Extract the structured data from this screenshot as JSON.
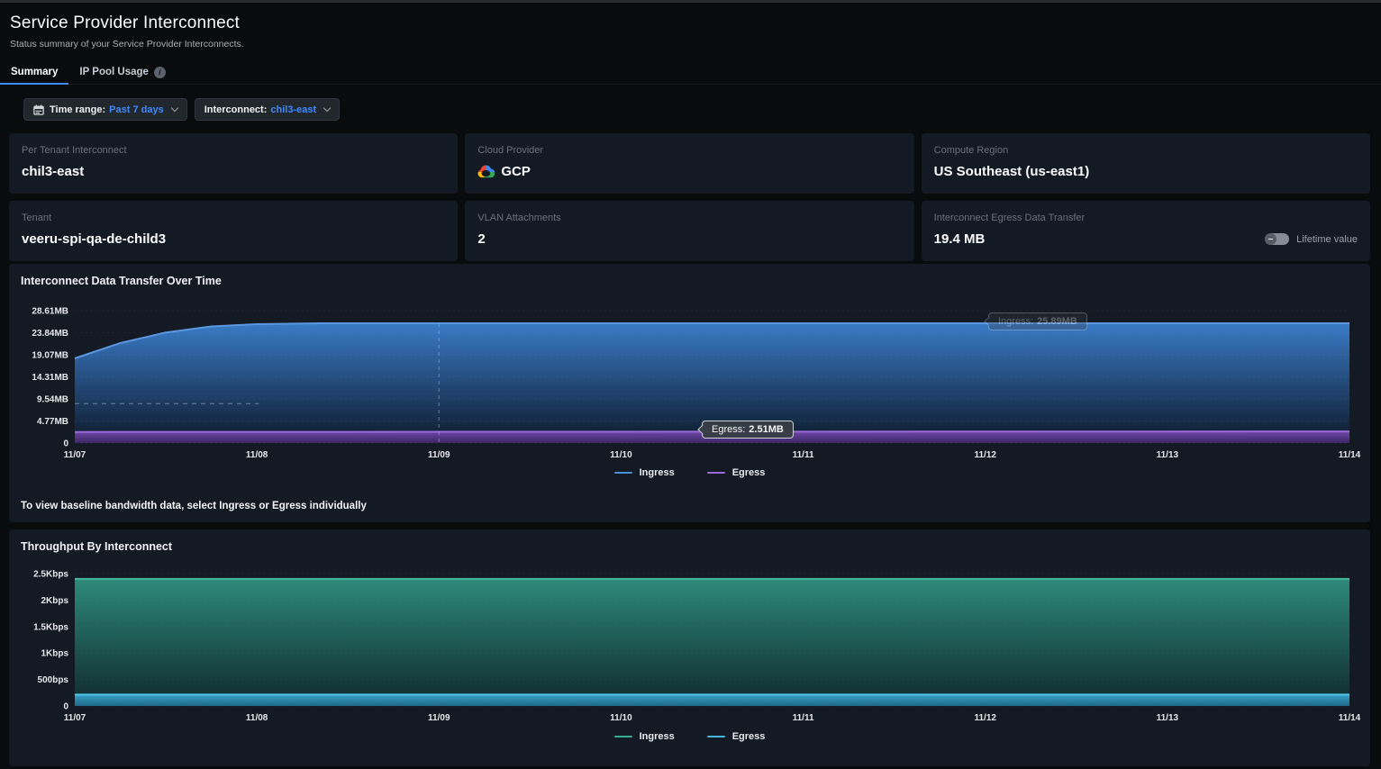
{
  "header": {
    "title": "Service Provider Interconnect",
    "subtitle": "Status summary of your Service Provider Interconnects."
  },
  "tabs": [
    {
      "label": "Summary",
      "active": true
    },
    {
      "label": "IP Pool Usage",
      "active": false
    }
  ],
  "filters": {
    "time_range_label": "Time range:",
    "time_range_value": "Past 7 days",
    "interconnect_label": "Interconnect:",
    "interconnect_value": "chil3-east"
  },
  "cards": [
    {
      "label": "Per Tenant Interconnect",
      "value": "chil3-east"
    },
    {
      "label": "Cloud Provider",
      "value": "GCP",
      "icon": "gcp-logo"
    },
    {
      "label": "Compute Region",
      "value": "US Southeast (us-east1)"
    },
    {
      "label": "Tenant",
      "value": "veeru-spi-qa-de-child3"
    },
    {
      "label": "VLAN Attachments",
      "value": "2"
    },
    {
      "label": "Interconnect Egress Data Transfer",
      "value": "19.4 MB",
      "toggle_label": "Lifetime value",
      "toggle_state": "off"
    }
  ],
  "note": "To view baseline bandwidth data, select Ingress or Egress individually",
  "chart_data": [
    {
      "type": "area",
      "title": "Interconnect Data Transfer Over Time",
      "categories": [
        "11/07",
        "11/08",
        "11/09",
        "11/10",
        "11/11",
        "11/12",
        "11/13",
        "11/14"
      ],
      "ylim": [
        0,
        28.61
      ],
      "y_ticks": [
        {
          "label": "28.61MB",
          "v": 28.61
        },
        {
          "label": "23.84MB",
          "v": 23.84
        },
        {
          "label": "19.07MB",
          "v": 19.07
        },
        {
          "label": "14.31MB",
          "v": 14.31
        },
        {
          "label": "9.54MB",
          "v": 9.54
        },
        {
          "label": "4.77MB",
          "v": 4.77
        },
        {
          "label": "0",
          "v": 0
        }
      ],
      "series": [
        {
          "name": "Ingress",
          "points": [
            [
              0,
              18.3
            ],
            [
              0.25,
              21.6
            ],
            [
              0.5,
              23.9
            ],
            [
              0.75,
              25.2
            ],
            [
              1,
              25.7
            ],
            [
              1.35,
              25.89
            ],
            [
              7,
              25.89
            ]
          ],
          "line": "#5b97de",
          "fill_top": "#3b7ecc",
          "fill_bottom": "#0d1a2c"
        },
        {
          "name": "Egress",
          "points": [
            [
              0,
              2.4
            ],
            [
              7,
              2.51
            ]
          ],
          "line": "#9a68d8",
          "fill_top": "#7449ad",
          "fill_bottom": "#3c2766"
        }
      ],
      "baseline": {
        "v": 8.5,
        "from_idx": 0,
        "to_idx": 1.01
      },
      "crosshair": {
        "idx": 2,
        "top_v": 25.89
      },
      "tooltips": [
        {
          "label": "Ingress:",
          "value": "25.89MB",
          "faded": true
        },
        {
          "label": "Egress:",
          "value": "2.51MB",
          "faded": false
        }
      ],
      "legend": [
        {
          "label": "Ingress",
          "color": "#4a8fd9"
        },
        {
          "label": "Egress",
          "color": "#9a68d8"
        }
      ]
    },
    {
      "type": "area",
      "title": "Throughput By Interconnect",
      "categories": [
        "11/07",
        "11/08",
        "11/09",
        "11/10",
        "11/11",
        "11/12",
        "11/13",
        "11/14"
      ],
      "ylim": [
        0,
        2500
      ],
      "y_ticks": [
        {
          "label": "2.5Kbps",
          "v": 2500
        },
        {
          "label": "2Kbps",
          "v": 2000
        },
        {
          "label": "1.5Kbps",
          "v": 1500
        },
        {
          "label": "1Kbps",
          "v": 1000
        },
        {
          "label": "500bps",
          "v": 500
        },
        {
          "label": "0",
          "v": 0
        }
      ],
      "series": [
        {
          "name": "Ingress",
          "points": [
            [
              0,
              2400
            ],
            [
              7,
              2400
            ]
          ],
          "line": "#46b69a",
          "fill_top": "#2e8d7e",
          "fill_bottom": "#0f2a2e"
        },
        {
          "name": "Egress",
          "points": [
            [
              0,
              215
            ],
            [
              7,
              215
            ]
          ],
          "line": "#4fc3e8",
          "fill_top": "#38a5cc",
          "fill_bottom": "#1f6b8d"
        }
      ],
      "legend": [
        {
          "label": "Ingress",
          "color": "#35ad92"
        },
        {
          "label": "Egress",
          "color": "#46b7dd"
        }
      ]
    }
  ],
  "colors": {
    "accent_blue": "#3d8bfd",
    "page_bg": "#0a0b0d",
    "panel_bg": "#141a23",
    "ingress_blue": "#4a8fd9",
    "egress_purple": "#9a68d8",
    "ingress_teal": "#35ad92",
    "egress_cyan": "#46b7dd"
  }
}
